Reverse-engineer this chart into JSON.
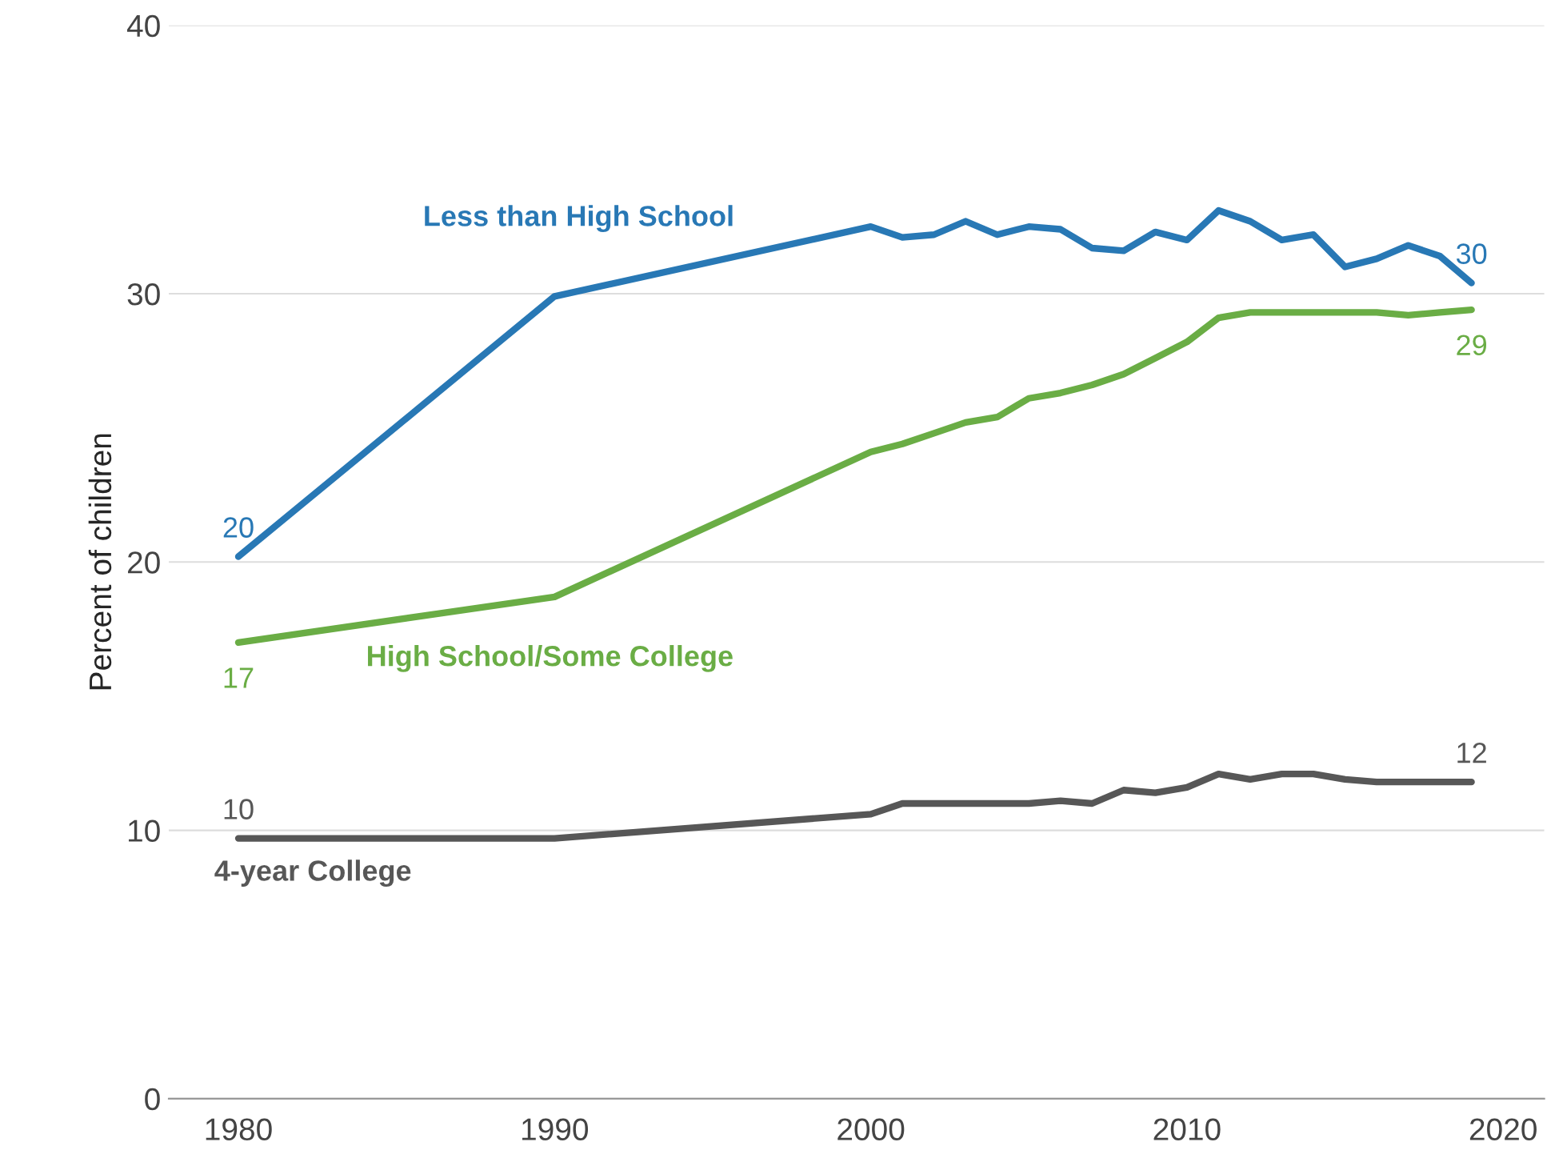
{
  "chart_data": {
    "type": "line",
    "ylabel": "Percent of children",
    "x": [
      1980,
      1990,
      2000,
      2001,
      2002,
      2003,
      2004,
      2005,
      2006,
      2007,
      2008,
      2009,
      2010,
      2011,
      2012,
      2013,
      2014,
      2015,
      2016,
      2017,
      2018,
      2019
    ],
    "series": [
      {
        "name": "Less than High School",
        "color": "#2878b5",
        "values": [
          20.2,
          29.9,
          32.5,
          32.1,
          32.2,
          32.7,
          32.2,
          32.5,
          32.4,
          31.7,
          31.6,
          32.3,
          32.0,
          33.1,
          32.7,
          32.0,
          32.2,
          31.0,
          31.3,
          31.8,
          31.4,
          30.4
        ],
        "value_labels": [
          "20",
          null,
          null,
          null,
          null,
          null,
          null,
          null,
          null,
          null,
          null,
          null,
          null,
          null,
          null,
          null,
          null,
          null,
          null,
          null,
          null,
          "30"
        ]
      },
      {
        "name": "High School/Some College",
        "color": "#6aad45",
        "values": [
          17.0,
          18.7,
          24.1,
          24.4,
          24.8,
          25.2,
          25.4,
          26.1,
          26.3,
          26.6,
          27.0,
          27.6,
          28.2,
          29.1,
          29.3,
          29.3,
          29.3,
          29.3,
          29.3,
          29.2,
          29.3,
          29.4
        ],
        "value_labels": [
          "17",
          null,
          null,
          null,
          null,
          null,
          null,
          null,
          null,
          null,
          null,
          null,
          null,
          null,
          null,
          null,
          null,
          null,
          null,
          null,
          null,
          "29"
        ]
      },
      {
        "name": "4-year College",
        "color": "#575757",
        "values": [
          9.7,
          9.7,
          10.6,
          11.0,
          11.0,
          11.0,
          11.0,
          11.0,
          11.1,
          11.0,
          11.5,
          11.4,
          11.6,
          12.1,
          11.9,
          12.1,
          12.1,
          11.9,
          11.8,
          11.8,
          11.8,
          11.8
        ],
        "value_labels": [
          "10",
          null,
          null,
          null,
          null,
          null,
          null,
          null,
          null,
          null,
          null,
          null,
          null,
          null,
          null,
          null,
          null,
          null,
          null,
          null,
          null,
          "12"
        ]
      }
    ],
    "xlim": [
      1977.8,
      2021.3
    ],
    "xticks": [
      1980,
      1990,
      2000,
      2010,
      2020
    ],
    "ylim": [
      0,
      40
    ],
    "yticks": [
      0,
      10,
      20,
      30,
      40
    ],
    "grid": "y",
    "legend": false,
    "marker": "none",
    "line_style": "solid"
  }
}
